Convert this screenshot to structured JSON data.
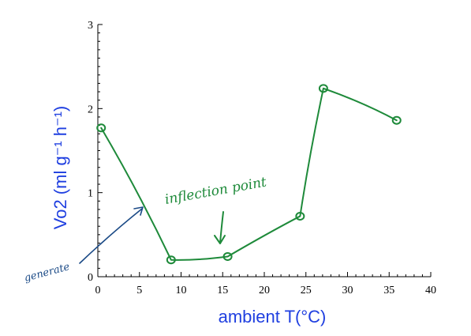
{
  "chart_data": {
    "type": "line",
    "xlabel": "ambient T(°C)",
    "ylabel": "Vo2 (ml g⁻¹ h⁻¹)",
    "xlim": [
      0,
      40
    ],
    "ylim": [
      0,
      3
    ],
    "x_ticks": [
      "0",
      "5",
      "10",
      "15",
      "20",
      "25",
      "30",
      "35",
      "40"
    ],
    "y_ticks": [
      "0",
      "1",
      "2",
      "3"
    ],
    "grid": false,
    "series": [
      {
        "x": [
          0.4,
          8.8,
          15.6,
          24.3,
          27.1,
          35.9
        ],
        "y": [
          1.77,
          0.2,
          0.24,
          0.72,
          2.24,
          1.86
        ],
        "color": "#1e8a3a"
      }
    ],
    "annotations": [
      {
        "text": "inflection point",
        "color": "#1e8a3a"
      },
      {
        "text": "generate",
        "color": "#1b4a86"
      }
    ]
  }
}
